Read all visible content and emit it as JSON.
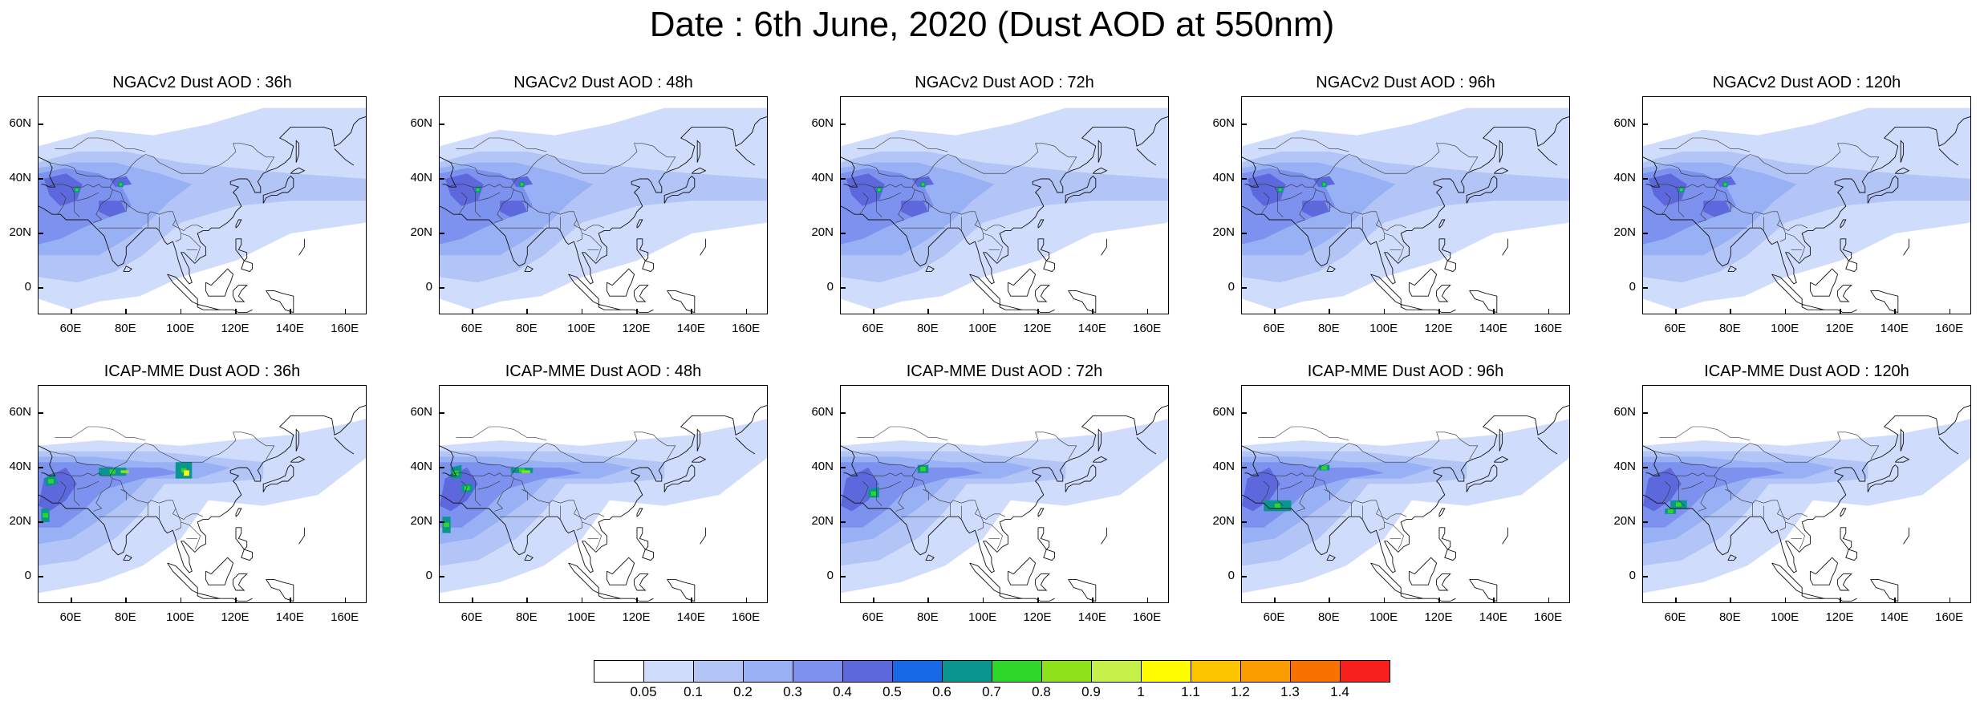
{
  "title": "Date : 6th June, 2020 (Dust AOD at 550nm)",
  "panels": [
    {
      "title": "NGACv2 Dust AOD : 36h",
      "model": "NGACv2",
      "lead": "36h"
    },
    {
      "title": "NGACv2 Dust AOD : 48h",
      "model": "NGACv2",
      "lead": "48h"
    },
    {
      "title": "NGACv2 Dust AOD : 72h",
      "model": "NGACv2",
      "lead": "72h"
    },
    {
      "title": "NGACv2 Dust AOD : 96h",
      "model": "NGACv2",
      "lead": "96h"
    },
    {
      "title": "NGACv2 Dust AOD : 120h",
      "model": "NGACv2",
      "lead": "120h"
    },
    {
      "title": "ICAP-MME Dust AOD : 36h",
      "model": "ICAP-MME",
      "lead": "36h"
    },
    {
      "title": "ICAP-MME Dust AOD : 48h",
      "model": "ICAP-MME",
      "lead": "48h"
    },
    {
      "title": "ICAP-MME Dust AOD : 72h",
      "model": "ICAP-MME",
      "lead": "72h"
    },
    {
      "title": "ICAP-MME Dust AOD : 96h",
      "model": "ICAP-MME",
      "lead": "96h"
    },
    {
      "title": "ICAP-MME Dust AOD : 120h",
      "model": "ICAP-MME",
      "lead": "120h"
    }
  ],
  "lat_labels": [
    "60N",
    "40N",
    "20N",
    "0"
  ],
  "lon_labels": [
    "60E",
    "80E",
    "100E",
    "120E",
    "140E",
    "160E"
  ],
  "extent": {
    "lon_min": 48,
    "lon_max": 168,
    "lat_min": -10,
    "lat_max": 70
  },
  "colorbar": {
    "labels": [
      "0.05",
      "0.1",
      "0.2",
      "0.3",
      "0.4",
      "0.5",
      "0.6",
      "0.7",
      "0.8",
      "0.9",
      "1",
      "1.1",
      "1.2",
      "1.3",
      "1.4"
    ],
    "colors": [
      "#ffffff",
      "#d0dcfb",
      "#b3c5f7",
      "#98b0f4",
      "#7c92ee",
      "#5d68dd",
      "#1769e8",
      "#0b9590",
      "#2fd62a",
      "#8ee21a",
      "#c6f04a",
      "#fffb00",
      "#fdc400",
      "#fb9d00",
      "#f77200",
      "#f7201c"
    ]
  }
}
